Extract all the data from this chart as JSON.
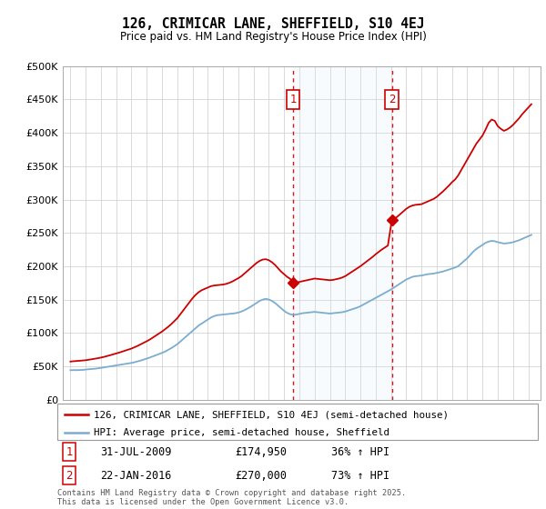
{
  "title": "126, CRIMICAR LANE, SHEFFIELD, S10 4EJ",
  "subtitle": "Price paid vs. HM Land Registry's House Price Index (HPI)",
  "legend_line1": "126, CRIMICAR LANE, SHEFFIELD, S10 4EJ (semi-detached house)",
  "legend_line2": "HPI: Average price, semi-detached house, Sheffield",
  "footnote": "Contains HM Land Registry data © Crown copyright and database right 2025.\nThis data is licensed under the Open Government Licence v3.0.",
  "sale1_date": "31-JUL-2009",
  "sale1_price": 174950,
  "sale2_date": "22-JAN-2016",
  "sale2_price": 270000,
  "sale1_year": 2009.58,
  "sale2_year": 2016.06,
  "red_color": "#cc0000",
  "blue_color": "#7aadcf",
  "shade_color": "#daeaf5",
  "annotation_box_color": "#cc0000",
  "ylim": [
    0,
    500000
  ],
  "xlim_start": 1994.5,
  "xlim_end": 2025.8,
  "hpi_data": [
    [
      1995.0,
      44000
    ],
    [
      1995.2,
      44200
    ],
    [
      1995.4,
      44100
    ],
    [
      1995.6,
      44300
    ],
    [
      1995.8,
      44500
    ],
    [
      1996.0,
      45000
    ],
    [
      1996.2,
      45500
    ],
    [
      1996.4,
      45800
    ],
    [
      1996.6,
      46200
    ],
    [
      1996.8,
      46800
    ],
    [
      1997.0,
      47500
    ],
    [
      1997.2,
      48200
    ],
    [
      1997.4,
      49000
    ],
    [
      1997.6,
      49800
    ],
    [
      1997.8,
      50500
    ],
    [
      1998.0,
      51200
    ],
    [
      1998.2,
      52000
    ],
    [
      1998.4,
      52800
    ],
    [
      1998.6,
      53500
    ],
    [
      1998.8,
      54200
    ],
    [
      1999.0,
      55000
    ],
    [
      1999.2,
      56000
    ],
    [
      1999.4,
      57200
    ],
    [
      1999.6,
      58500
    ],
    [
      1999.8,
      60000
    ],
    [
      2000.0,
      61500
    ],
    [
      2000.2,
      63000
    ],
    [
      2000.4,
      64800
    ],
    [
      2000.6,
      66500
    ],
    [
      2000.8,
      68200
    ],
    [
      2001.0,
      70000
    ],
    [
      2001.2,
      72000
    ],
    [
      2001.4,
      74500
    ],
    [
      2001.6,
      77000
    ],
    [
      2001.8,
      80000
    ],
    [
      2002.0,
      83000
    ],
    [
      2002.2,
      87000
    ],
    [
      2002.4,
      91000
    ],
    [
      2002.6,
      95000
    ],
    [
      2002.8,
      99000
    ],
    [
      2003.0,
      103000
    ],
    [
      2003.2,
      107000
    ],
    [
      2003.4,
      111000
    ],
    [
      2003.6,
      114000
    ],
    [
      2003.8,
      117000
    ],
    [
      2004.0,
      120000
    ],
    [
      2004.2,
      123000
    ],
    [
      2004.4,
      125000
    ],
    [
      2004.6,
      126500
    ],
    [
      2004.8,
      127000
    ],
    [
      2005.0,
      127500
    ],
    [
      2005.2,
      128000
    ],
    [
      2005.4,
      128500
    ],
    [
      2005.6,
      129000
    ],
    [
      2005.8,
      129500
    ],
    [
      2006.0,
      130500
    ],
    [
      2006.2,
      132000
    ],
    [
      2006.4,
      134000
    ],
    [
      2006.6,
      136500
    ],
    [
      2006.8,
      139000
    ],
    [
      2007.0,
      142000
    ],
    [
      2007.2,
      145000
    ],
    [
      2007.4,
      148000
    ],
    [
      2007.6,
      150000
    ],
    [
      2007.8,
      151000
    ],
    [
      2008.0,
      150000
    ],
    [
      2008.2,
      148000
    ],
    [
      2008.4,
      145000
    ],
    [
      2008.6,
      141000
    ],
    [
      2008.8,
      137000
    ],
    [
      2009.0,
      133000
    ],
    [
      2009.2,
      130000
    ],
    [
      2009.4,
      128000
    ],
    [
      2009.6,
      127000
    ],
    [
      2009.8,
      127500
    ],
    [
      2010.0,
      128500
    ],
    [
      2010.2,
      129500
    ],
    [
      2010.4,
      130000
    ],
    [
      2010.6,
      130500
    ],
    [
      2010.8,
      131000
    ],
    [
      2011.0,
      131500
    ],
    [
      2011.2,
      131000
    ],
    [
      2011.4,
      130500
    ],
    [
      2011.6,
      130000
    ],
    [
      2011.8,
      129500
    ],
    [
      2012.0,
      129000
    ],
    [
      2012.2,
      129500
    ],
    [
      2012.4,
      130000
    ],
    [
      2012.6,
      130500
    ],
    [
      2012.8,
      131000
    ],
    [
      2013.0,
      132000
    ],
    [
      2013.2,
      133500
    ],
    [
      2013.4,
      135000
    ],
    [
      2013.6,
      136500
    ],
    [
      2013.8,
      138000
    ],
    [
      2014.0,
      140000
    ],
    [
      2014.2,
      142500
    ],
    [
      2014.4,
      145000
    ],
    [
      2014.6,
      147500
    ],
    [
      2014.8,
      150000
    ],
    [
      2015.0,
      152500
    ],
    [
      2015.2,
      155000
    ],
    [
      2015.4,
      157500
    ],
    [
      2015.6,
      160000
    ],
    [
      2015.8,
      162500
    ],
    [
      2016.0,
      165000
    ],
    [
      2016.2,
      168000
    ],
    [
      2016.4,
      171000
    ],
    [
      2016.6,
      174000
    ],
    [
      2016.8,
      177000
    ],
    [
      2017.0,
      180000
    ],
    [
      2017.2,
      182000
    ],
    [
      2017.4,
      184000
    ],
    [
      2017.6,
      185000
    ],
    [
      2017.8,
      185500
    ],
    [
      2018.0,
      186000
    ],
    [
      2018.2,
      187000
    ],
    [
      2018.4,
      188000
    ],
    [
      2018.6,
      188500
    ],
    [
      2018.8,
      189000
    ],
    [
      2019.0,
      190000
    ],
    [
      2019.2,
      191000
    ],
    [
      2019.4,
      192000
    ],
    [
      2019.6,
      193500
    ],
    [
      2019.8,
      195000
    ],
    [
      2020.0,
      196500
    ],
    [
      2020.2,
      198000
    ],
    [
      2020.4,
      200000
    ],
    [
      2020.6,
      204000
    ],
    [
      2020.8,
      208000
    ],
    [
      2021.0,
      212000
    ],
    [
      2021.2,
      217000
    ],
    [
      2021.4,
      222000
    ],
    [
      2021.6,
      226000
    ],
    [
      2021.8,
      229000
    ],
    [
      2022.0,
      232000
    ],
    [
      2022.2,
      235000
    ],
    [
      2022.4,
      237000
    ],
    [
      2022.6,
      238000
    ],
    [
      2022.8,
      237500
    ],
    [
      2023.0,
      236000
    ],
    [
      2023.2,
      235000
    ],
    [
      2023.4,
      234000
    ],
    [
      2023.6,
      234500
    ],
    [
      2023.8,
      235000
    ],
    [
      2024.0,
      236000
    ],
    [
      2024.2,
      237500
    ],
    [
      2024.4,
      239000
    ],
    [
      2024.6,
      241000
    ],
    [
      2024.8,
      243000
    ],
    [
      2025.0,
      245000
    ],
    [
      2025.2,
      247000
    ]
  ],
  "property_data": [
    [
      1995.0,
      57000
    ],
    [
      1995.2,
      57500
    ],
    [
      1995.4,
      57800
    ],
    [
      1995.6,
      58200
    ],
    [
      1995.8,
      58600
    ],
    [
      1996.0,
      59000
    ],
    [
      1996.2,
      59800
    ],
    [
      1996.4,
      60500
    ],
    [
      1996.6,
      61200
    ],
    [
      1996.8,
      62000
    ],
    [
      1997.0,
      63000
    ],
    [
      1997.2,
      64000
    ],
    [
      1997.4,
      65200
    ],
    [
      1997.6,
      66500
    ],
    [
      1997.8,
      67800
    ],
    [
      1998.0,
      69000
    ],
    [
      1998.2,
      70500
    ],
    [
      1998.4,
      72000
    ],
    [
      1998.6,
      73500
    ],
    [
      1998.8,
      75000
    ],
    [
      1999.0,
      76500
    ],
    [
      1999.2,
      78500
    ],
    [
      1999.4,
      80500
    ],
    [
      1999.6,
      82800
    ],
    [
      1999.8,
      85200
    ],
    [
      2000.0,
      87500
    ],
    [
      2000.2,
      90000
    ],
    [
      2000.4,
      93000
    ],
    [
      2000.6,
      96000
    ],
    [
      2000.8,
      99000
    ],
    [
      2001.0,
      102000
    ],
    [
      2001.2,
      105500
    ],
    [
      2001.4,
      109000
    ],
    [
      2001.6,
      113000
    ],
    [
      2001.8,
      117500
    ],
    [
      2002.0,
      122000
    ],
    [
      2002.2,
      128000
    ],
    [
      2002.4,
      134000
    ],
    [
      2002.6,
      140000
    ],
    [
      2002.8,
      146000
    ],
    [
      2003.0,
      152000
    ],
    [
      2003.2,
      157000
    ],
    [
      2003.4,
      161000
    ],
    [
      2003.6,
      164000
    ],
    [
      2003.8,
      166000
    ],
    [
      2004.0,
      168000
    ],
    [
      2004.2,
      170000
    ],
    [
      2004.4,
      171000
    ],
    [
      2004.6,
      171500
    ],
    [
      2004.8,
      172000
    ],
    [
      2005.0,
      172500
    ],
    [
      2005.2,
      173500
    ],
    [
      2005.4,
      175000
    ],
    [
      2005.6,
      177000
    ],
    [
      2005.8,
      179500
    ],
    [
      2006.0,
      182000
    ],
    [
      2006.2,
      185000
    ],
    [
      2006.4,
      189000
    ],
    [
      2006.6,
      193000
    ],
    [
      2006.8,
      197000
    ],
    [
      2007.0,
      201000
    ],
    [
      2007.2,
      205000
    ],
    [
      2007.4,
      208000
    ],
    [
      2007.6,
      210000
    ],
    [
      2007.8,
      210500
    ],
    [
      2008.0,
      209000
    ],
    [
      2008.2,
      206000
    ],
    [
      2008.4,
      202000
    ],
    [
      2008.6,
      197000
    ],
    [
      2008.8,
      192000
    ],
    [
      2009.0,
      188000
    ],
    [
      2009.2,
      184000
    ],
    [
      2009.4,
      181000
    ],
    [
      2009.58,
      174950
    ],
    [
      2009.8,
      175500
    ],
    [
      2010.0,
      176500
    ],
    [
      2010.2,
      177500
    ],
    [
      2010.4,
      178500
    ],
    [
      2010.6,
      179500
    ],
    [
      2010.8,
      180500
    ],
    [
      2011.0,
      181500
    ],
    [
      2011.2,
      181000
    ],
    [
      2011.4,
      180500
    ],
    [
      2011.6,
      180000
    ],
    [
      2011.8,
      179500
    ],
    [
      2012.0,
      179000
    ],
    [
      2012.2,
      179500
    ],
    [
      2012.4,
      180500
    ],
    [
      2012.6,
      181500
    ],
    [
      2012.8,
      183000
    ],
    [
      2013.0,
      185000
    ],
    [
      2013.2,
      188000
    ],
    [
      2013.4,
      191000
    ],
    [
      2013.6,
      194000
    ],
    [
      2013.8,
      197000
    ],
    [
      2014.0,
      200000
    ],
    [
      2014.2,
      203500
    ],
    [
      2014.4,
      207000
    ],
    [
      2014.6,
      210500
    ],
    [
      2014.8,
      214000
    ],
    [
      2015.0,
      218000
    ],
    [
      2015.2,
      221500
    ],
    [
      2015.4,
      225000
    ],
    [
      2015.6,
      228000
    ],
    [
      2015.8,
      231000
    ],
    [
      2016.06,
      270000
    ],
    [
      2016.2,
      271000
    ],
    [
      2016.4,
      274000
    ],
    [
      2016.6,
      278000
    ],
    [
      2016.8,
      282000
    ],
    [
      2017.0,
      286000
    ],
    [
      2017.2,
      289000
    ],
    [
      2017.4,
      291000
    ],
    [
      2017.6,
      292000
    ],
    [
      2017.8,
      292500
    ],
    [
      2018.0,
      293000
    ],
    [
      2018.2,
      295000
    ],
    [
      2018.4,
      297000
    ],
    [
      2018.6,
      299000
    ],
    [
      2018.8,
      301000
    ],
    [
      2019.0,
      304000
    ],
    [
      2019.2,
      308000
    ],
    [
      2019.4,
      312000
    ],
    [
      2019.6,
      316500
    ],
    [
      2019.8,
      321000
    ],
    [
      2020.0,
      326000
    ],
    [
      2020.2,
      330000
    ],
    [
      2020.4,
      336000
    ],
    [
      2020.6,
      344000
    ],
    [
      2020.8,
      352000
    ],
    [
      2021.0,
      360000
    ],
    [
      2021.2,
      368000
    ],
    [
      2021.4,
      376000
    ],
    [
      2021.6,
      384000
    ],
    [
      2021.8,
      390000
    ],
    [
      2022.0,
      396000
    ],
    [
      2022.2,
      405000
    ],
    [
      2022.4,
      415000
    ],
    [
      2022.6,
      420000
    ],
    [
      2022.8,
      418000
    ],
    [
      2023.0,
      410000
    ],
    [
      2023.2,
      406000
    ],
    [
      2023.4,
      403000
    ],
    [
      2023.6,
      405000
    ],
    [
      2023.8,
      408000
    ],
    [
      2024.0,
      412000
    ],
    [
      2024.2,
      417000
    ],
    [
      2024.4,
      422000
    ],
    [
      2024.6,
      428000
    ],
    [
      2024.8,
      433000
    ],
    [
      2025.0,
      438000
    ],
    [
      2025.2,
      443000
    ]
  ]
}
